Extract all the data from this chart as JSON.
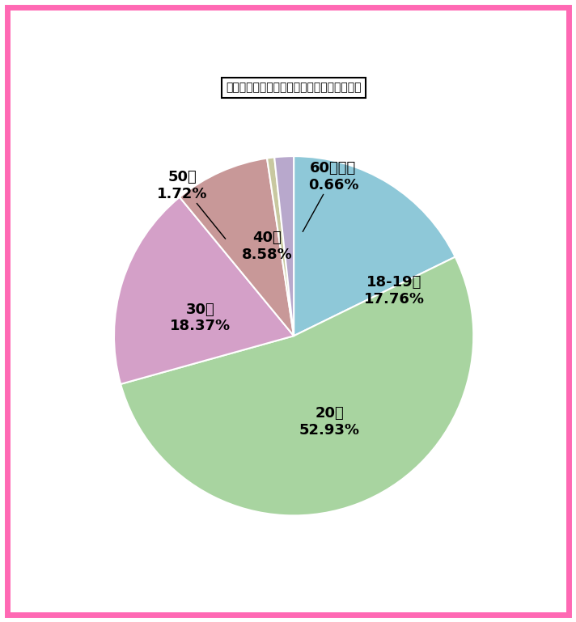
{
  "title": "秋田県のワクワクメール：女性会員の年齢層",
  "slices": [
    {
      "label": "18-19歳",
      "pct": "17.76%",
      "value": 17.76,
      "color": "#8ec8d8"
    },
    {
      "label": "20代",
      "pct": "52.93%",
      "value": 52.93,
      "color": "#a8d4a0"
    },
    {
      "label": "30代",
      "pct": "18.37%",
      "value": 18.37,
      "color": "#d4a0c8"
    },
    {
      "label": "40代",
      "pct": "8.58%",
      "value": 8.58,
      "color": "#c89898"
    },
    {
      "label": "60代以上",
      "pct": "0.66%",
      "value": 0.66,
      "color": "#c8c8a0"
    },
    {
      "label": "50代",
      "pct": "1.72%",
      "value": 1.72,
      "color": "#b8a8cc"
    }
  ],
  "startangle": 90,
  "background_color": "#ffffff",
  "border_color": "#ff69b4",
  "border_linewidth": 5,
  "title_fontsize": 14,
  "label_fontsize": 13,
  "wedge_edge_color": "#ffffff",
  "wedge_edge_width": 1.5
}
